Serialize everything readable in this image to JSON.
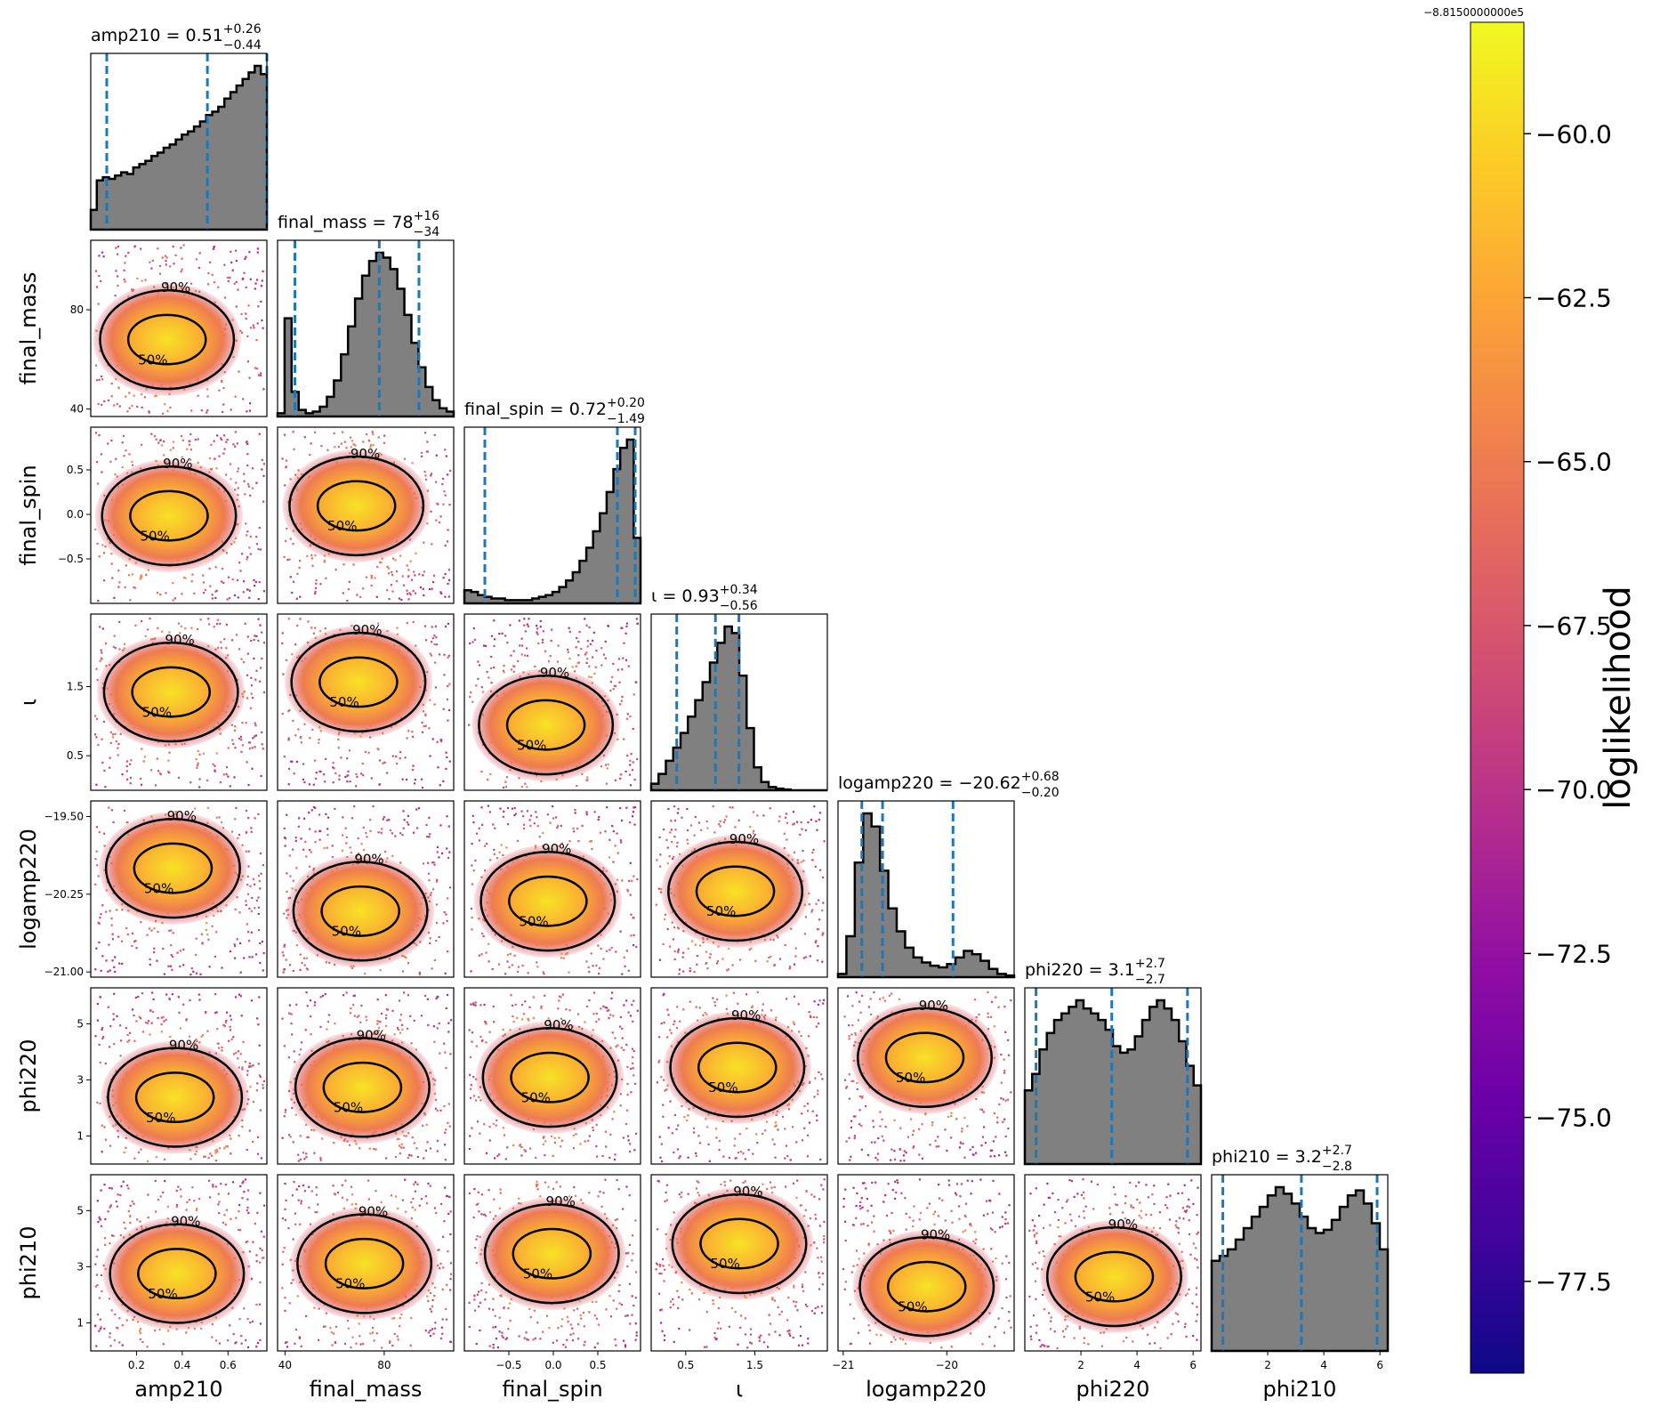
{
  "chart_data": {
    "type": "corner",
    "parameters": [
      "amp210",
      "final_mass",
      "final_spin",
      "ι",
      "logamp220",
      "phi220",
      "phi210"
    ],
    "ranges": [
      [
        0.0,
        0.77
      ],
      [
        37,
        108
      ],
      [
        -1.0,
        0.98
      ],
      [
        0.0,
        2.55
      ],
      [
        -21.05,
        -19.35
      ],
      [
        0.0,
        6.28
      ],
      [
        0.0,
        6.28
      ]
    ],
    "axis_labels_x": [
      "amp210",
      "final_mass",
      "final_spin",
      "ι",
      "logamp220",
      "phi220",
      "phi210"
    ],
    "axis_labels_y": [
      "",
      "final_mass",
      "final_spin",
      "ι",
      "logamp220",
      "phi220",
      "phi210"
    ],
    "x_ticks": [
      {
        "values": [
          0.2,
          0.4,
          0.6
        ],
        "labels": [
          "0.2",
          "0.4",
          "0.6"
        ]
      },
      {
        "values": [
          40,
          80
        ],
        "labels": [
          "40",
          "80"
        ]
      },
      {
        "values": [
          -0.5,
          0.0,
          0.5
        ],
        "labels": [
          "−0.5",
          "0.0",
          "0.5"
        ]
      },
      {
        "values": [
          0.5,
          1.5
        ],
        "labels": [
          "0.5",
          "1.5"
        ]
      },
      {
        "values": [
          -21,
          -20
        ],
        "labels": [
          "−21",
          "−20"
        ]
      },
      {
        "values": [
          2,
          4,
          6
        ],
        "labels": [
          "2",
          "4",
          "6"
        ]
      },
      {
        "values": [
          2,
          4,
          6
        ],
        "labels": [
          "2",
          "4",
          "6"
        ]
      }
    ],
    "y_ticks": [
      null,
      {
        "values": [
          40,
          80
        ],
        "labels": [
          "40",
          "80"
        ]
      },
      {
        "values": [
          -0.5,
          0.0,
          0.5
        ],
        "labels": [
          "−0.5",
          "0.0",
          "0.5"
        ]
      },
      {
        "values": [
          0.5,
          1.5
        ],
        "labels": [
          "0.5",
          "1.5"
        ]
      },
      {
        "values": [
          -21.0,
          -20.25,
          -19.5
        ],
        "labels": [
          "−21.00",
          "−20.25",
          "−19.50"
        ]
      },
      {
        "values": [
          1,
          3,
          5
        ],
        "labels": [
          "1",
          "3",
          "5"
        ]
      },
      {
        "values": [
          1,
          3,
          5
        ],
        "labels": [
          "1",
          "3",
          "5"
        ]
      }
    ],
    "diagonal_titles": [
      {
        "name": "amp210",
        "median": "0.51",
        "plus": "+0.26",
        "minus": "−0.44"
      },
      {
        "name": "final_mass",
        "median": "78",
        "plus": "+16",
        "minus": "−34"
      },
      {
        "name": "final_spin",
        "median": "0.72",
        "plus": "+0.20",
        "minus": "−1.49"
      },
      {
        "name": "ι",
        "median": "0.93",
        "plus": "+0.34",
        "minus": "−0.56"
      },
      {
        "name": "logamp220",
        "median": "−20.62",
        "plus": "+0.68",
        "minus": "−0.20"
      },
      {
        "name": "phi220",
        "median": "3.1",
        "plus": "+2.7",
        "minus": "−2.7"
      },
      {
        "name": "phi210",
        "median": "3.2",
        "plus": "+2.7",
        "minus": "−2.8"
      }
    ],
    "quantile_lines": [
      [
        0.07,
        0.51,
        0.77
      ],
      [
        44,
        78,
        94
      ],
      [
        -0.77,
        0.72,
        0.92
      ],
      [
        0.37,
        0.93,
        1.27
      ],
      [
        -20.82,
        -20.62,
        -19.94
      ],
      [
        0.4,
        3.1,
        5.8
      ],
      [
        0.4,
        3.2,
        5.9
      ]
    ],
    "histograms": [
      [
        0.12,
        0.3,
        0.32,
        0.31,
        0.33,
        0.35,
        0.34,
        0.38,
        0.4,
        0.42,
        0.45,
        0.47,
        0.5,
        0.52,
        0.55,
        0.58,
        0.6,
        0.63,
        0.66,
        0.7,
        0.72,
        0.75,
        0.8,
        0.84,
        0.88,
        0.92,
        0.96,
        1.0,
        0.95
      ],
      [
        0.02,
        0.6,
        0.15,
        0.04,
        0.02,
        0.03,
        0.06,
        0.12,
        0.22,
        0.38,
        0.55,
        0.72,
        0.86,
        0.95,
        1.0,
        0.97,
        0.9,
        0.78,
        0.62,
        0.45,
        0.3,
        0.18,
        0.1,
        0.05,
        0.03
      ],
      [
        0.08,
        0.07,
        0.05,
        0.04,
        0.03,
        0.03,
        0.02,
        0.02,
        0.02,
        0.02,
        0.03,
        0.04,
        0.05,
        0.07,
        0.1,
        0.14,
        0.19,
        0.26,
        0.34,
        0.44,
        0.55,
        0.68,
        0.82,
        0.95,
        1.0,
        0.4
      ],
      [
        0.04,
        0.1,
        0.18,
        0.26,
        0.35,
        0.45,
        0.55,
        0.66,
        0.78,
        0.9,
        1.0,
        0.96,
        0.7,
        0.38,
        0.14,
        0.05,
        0.02,
        0.01,
        0.005,
        0.0,
        0.0,
        0.0,
        0.0,
        0.0
      ],
      [
        0.02,
        0.25,
        0.7,
        1.0,
        0.92,
        0.65,
        0.42,
        0.28,
        0.18,
        0.12,
        0.09,
        0.07,
        0.06,
        0.08,
        0.12,
        0.16,
        0.14,
        0.1,
        0.05,
        0.02,
        0.01
      ],
      [
        0.45,
        0.55,
        0.7,
        0.8,
        0.88,
        0.92,
        0.96,
        1.0,
        0.95,
        0.92,
        0.88,
        0.82,
        0.72,
        0.68,
        0.7,
        0.78,
        0.88,
        0.96,
        1.0,
        0.95,
        0.88,
        0.75,
        0.6,
        0.48
      ],
      [
        0.55,
        0.58,
        0.62,
        0.68,
        0.75,
        0.82,
        0.88,
        0.95,
        1.0,
        0.96,
        0.9,
        0.82,
        0.75,
        0.72,
        0.74,
        0.8,
        0.88,
        0.95,
        0.98,
        0.9,
        0.78,
        0.62
      ]
    ],
    "contour_labels": [
      "50%",
      "90%"
    ],
    "colorbar": {
      "label": "loglikelihood",
      "offset_label": "−8.8150000000e5",
      "range": [
        -78.9,
        -58.3
      ],
      "ticks": [
        -60.0,
        -62.5,
        -65.0,
        -67.5,
        -70.0,
        -72.5,
        -75.0,
        -77.5
      ],
      "tick_labels": [
        "−60.0",
        "−62.5",
        "−65.0",
        "−67.5",
        "−70.0",
        "−72.5",
        "−75.0",
        "−77.5"
      ],
      "colormap": "plasma"
    },
    "colors": {
      "histogram_fill": "#808080",
      "quantile_line": "#1f77b4",
      "contour": "#000000"
    }
  }
}
